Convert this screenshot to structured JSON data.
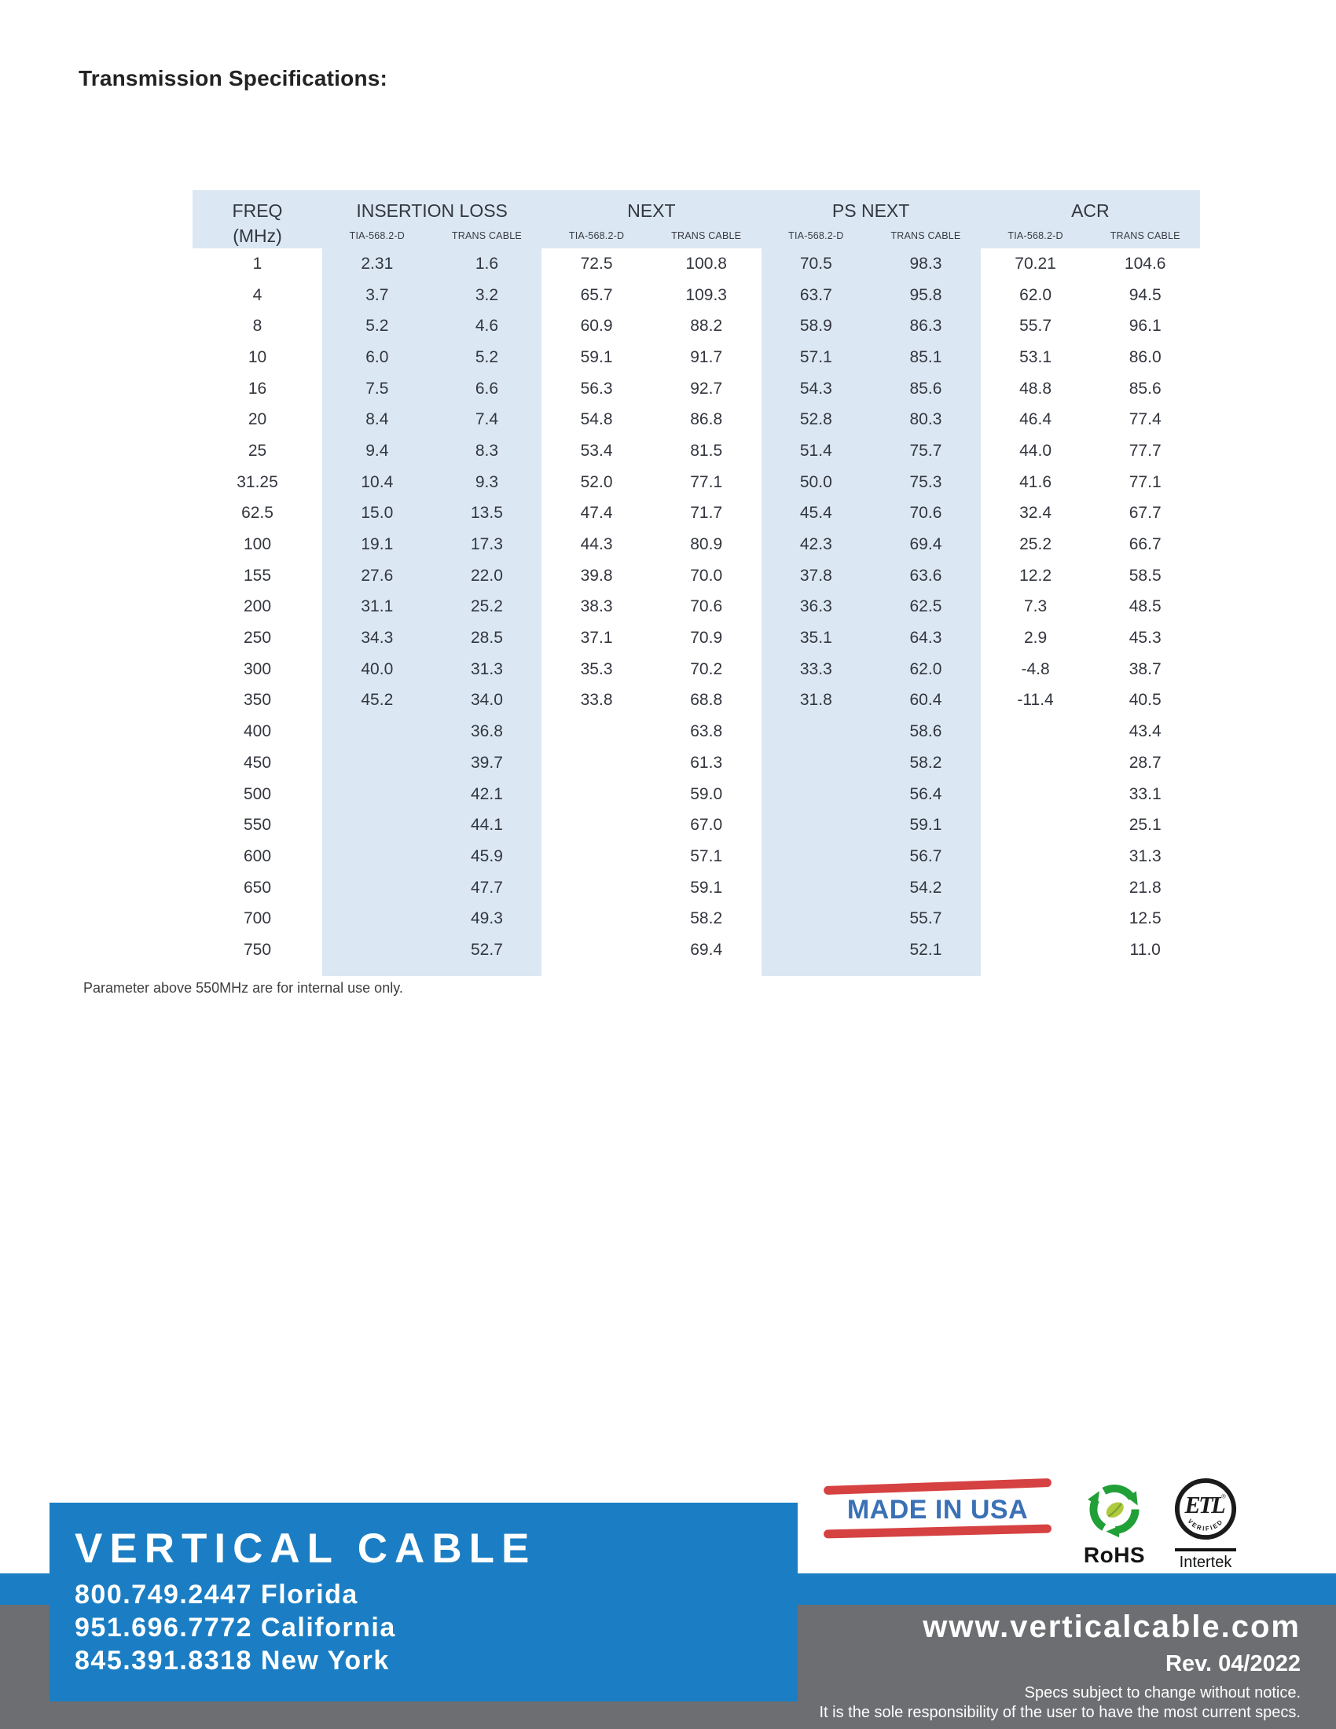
{
  "page": {
    "title": "Transmission Specifications:"
  },
  "table": {
    "freq_header": {
      "line1": "FREQ",
      "line2": "(MHz)"
    },
    "groups": [
      {
        "label": "INSERTION LOSS",
        "subs": [
          "TIA-568.2-D",
          "TRANS CABLE"
        ]
      },
      {
        "label": "NEXT",
        "subs": [
          "TIA-568.2-D",
          "TRANS CABLE"
        ]
      },
      {
        "label": "PS NEXT",
        "subs": [
          "TIA-568.2-D",
          "TRANS CABLE"
        ]
      },
      {
        "label": "ACR",
        "subs": [
          "TIA-568.2-D",
          "TRANS CABLE"
        ]
      }
    ],
    "rows": [
      [
        "1",
        "2.31",
        "1.6",
        "72.5",
        "100.8",
        "70.5",
        "98.3",
        "70.21",
        "104.6"
      ],
      [
        "4",
        "3.7",
        "3.2",
        "65.7",
        "109.3",
        "63.7",
        "95.8",
        "62.0",
        "94.5"
      ],
      [
        "8",
        "5.2",
        "4.6",
        "60.9",
        "88.2",
        "58.9",
        "86.3",
        "55.7",
        "96.1"
      ],
      [
        "10",
        "6.0",
        "5.2",
        "59.1",
        "91.7",
        "57.1",
        "85.1",
        "53.1",
        "86.0"
      ],
      [
        "16",
        "7.5",
        "6.6",
        "56.3",
        "92.7",
        "54.3",
        "85.6",
        "48.8",
        "85.6"
      ],
      [
        "20",
        "8.4",
        "7.4",
        "54.8",
        "86.8",
        "52.8",
        "80.3",
        "46.4",
        "77.4"
      ],
      [
        "25",
        "9.4",
        "8.3",
        "53.4",
        "81.5",
        "51.4",
        "75.7",
        "44.0",
        "77.7"
      ],
      [
        "31.25",
        "10.4",
        "9.3",
        "52.0",
        "77.1",
        "50.0",
        "75.3",
        "41.6",
        "77.1"
      ],
      [
        "62.5",
        "15.0",
        "13.5",
        "47.4",
        "71.7",
        "45.4",
        "70.6",
        "32.4",
        "67.7"
      ],
      [
        "100",
        "19.1",
        "17.3",
        "44.3",
        "80.9",
        "42.3",
        "69.4",
        "25.2",
        "66.7"
      ],
      [
        "155",
        "27.6",
        "22.0",
        "39.8",
        "70.0",
        "37.8",
        "63.6",
        "12.2",
        "58.5"
      ],
      [
        "200",
        "31.1",
        "25.2",
        "38.3",
        "70.6",
        "36.3",
        "62.5",
        "7.3",
        "48.5"
      ],
      [
        "250",
        "34.3",
        "28.5",
        "37.1",
        "70.9",
        "35.1",
        "64.3",
        "2.9",
        "45.3"
      ],
      [
        "300",
        "40.0",
        "31.3",
        "35.3",
        "70.2",
        "33.3",
        "62.0",
        "-4.8",
        "38.7"
      ],
      [
        "350",
        "45.2",
        "34.0",
        "33.8",
        "68.8",
        "31.8",
        "60.4",
        "-11.4",
        "40.5"
      ],
      [
        "400",
        "",
        "36.8",
        "",
        "63.8",
        "",
        "58.6",
        "",
        "43.4"
      ],
      [
        "450",
        "",
        "39.7",
        "",
        "61.3",
        "",
        "58.2",
        "",
        "28.7"
      ],
      [
        "500",
        "",
        "42.1",
        "",
        "59.0",
        "",
        "56.4",
        "",
        "33.1"
      ],
      [
        "550",
        "",
        "44.1",
        "",
        "67.0",
        "",
        "59.1",
        "",
        "25.1"
      ],
      [
        "600",
        "",
        "45.9",
        "",
        "57.1",
        "",
        "56.7",
        "",
        "31.3"
      ],
      [
        "650",
        "",
        "47.7",
        "",
        "59.1",
        "",
        "54.2",
        "",
        "21.8"
      ],
      [
        "700",
        "",
        "49.3",
        "",
        "58.2",
        "",
        "55.7",
        "",
        "12.5"
      ],
      [
        "750",
        "",
        "52.7",
        "",
        "69.4",
        "",
        "52.1",
        "",
        "11.0"
      ]
    ],
    "footnote": "Parameter above 550MHz are for internal use only."
  },
  "footer": {
    "made_in_usa": "MADE IN USA",
    "rohs": "RoHS",
    "etl": "ETL",
    "etl_verified": "VERIFIED",
    "intertek": "Intertek",
    "brand": "VERTICAL CABLE",
    "phones": [
      "800.749.2447 Florida",
      "951.696.7772 California",
      "845.391.8318 New York"
    ],
    "website": "www.verticalcable.com",
    "revision": "Rev. 04/2022",
    "disclaimer_line1": "Specs subject to change without notice.",
    "disclaimer_line2": "It is the sole responsibility of the user to have the most current specs."
  },
  "colors": {
    "brand_blue": "#1b7ec4",
    "footer_gray": "#6d6e71",
    "table_band_blue": "#dbe8f4",
    "stamp_red": "#d64141",
    "stamp_blue": "#3a70b5",
    "rohs_green": "#21a038",
    "leaf_green": "#aecb3d"
  }
}
